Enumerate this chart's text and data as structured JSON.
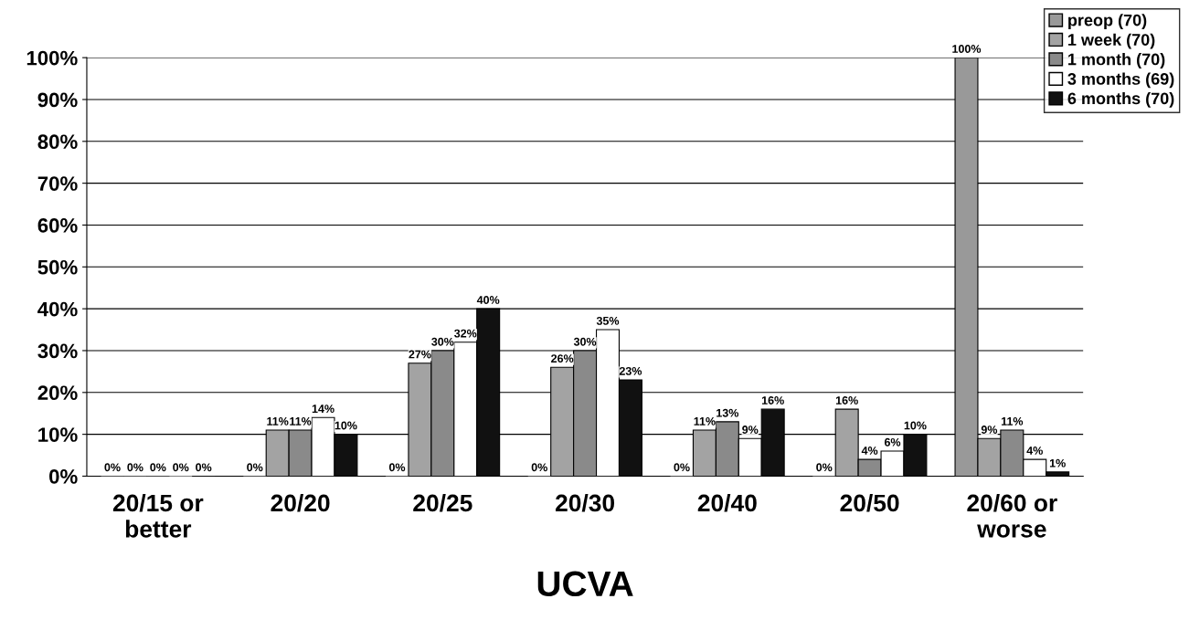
{
  "chart_data": {
    "type": "bar",
    "xlabel": "UCVA",
    "categories": [
      "20/15 or\nbetter",
      "20/20",
      "20/25",
      "20/30",
      "20/40",
      "20/50",
      "20/60 or\nworse"
    ],
    "series": [
      {
        "name": "preop (70)",
        "color": "#999999",
        "values": [
          0,
          0,
          0,
          0,
          0,
          0,
          100
        ],
        "value_labels": [
          "0%",
          "0%",
          "0%",
          "0%",
          "0%",
          "0%",
          "100%"
        ]
      },
      {
        "name": "1 week (70)",
        "color": "#a3a3a3",
        "values": [
          0,
          11,
          27,
          26,
          11,
          16,
          9
        ],
        "value_labels": [
          "0%",
          "11%",
          "27%",
          "26%",
          "11%",
          "16%",
          "9%"
        ]
      },
      {
        "name": "1 month (70)",
        "color": "#8a8a8a",
        "values": [
          0,
          11,
          30,
          30,
          13,
          4,
          11
        ],
        "value_labels": [
          "0%",
          "11%",
          "30%",
          "30%",
          "13%",
          "4%",
          "11%"
        ]
      },
      {
        "name": "3 months (69)",
        "color": "#ffffff",
        "values": [
          0,
          14,
          32,
          35,
          9,
          6,
          4
        ],
        "value_labels": [
          "0%",
          "14%",
          "32%",
          "35%",
          "9%",
          "6%",
          "4%"
        ]
      },
      {
        "name": "6 months (70)",
        "color": "#111111",
        "values": [
          0,
          10,
          40,
          23,
          16,
          10,
          1
        ],
        "value_labels": [
          "0%",
          "10%",
          "40%",
          "23%",
          "16%",
          "10%",
          "1%"
        ]
      }
    ],
    "ylim": [
      0,
      100
    ],
    "yticks": [
      {
        "value": 0,
        "label": "0%"
      },
      {
        "value": 10,
        "label": "10%"
      },
      {
        "value": 20,
        "label": "20%"
      },
      {
        "value": 30,
        "label": "30%"
      },
      {
        "value": 40,
        "label": "40%"
      },
      {
        "value": 50,
        "label": "50%"
      },
      {
        "value": 60,
        "label": "60%"
      },
      {
        "value": 70,
        "label": "70%"
      },
      {
        "value": 80,
        "label": "80%"
      },
      {
        "value": 90,
        "label": "90%"
      },
      {
        "value": 100,
        "label": "100%"
      }
    ],
    "grid": "y",
    "legend": "top right"
  }
}
